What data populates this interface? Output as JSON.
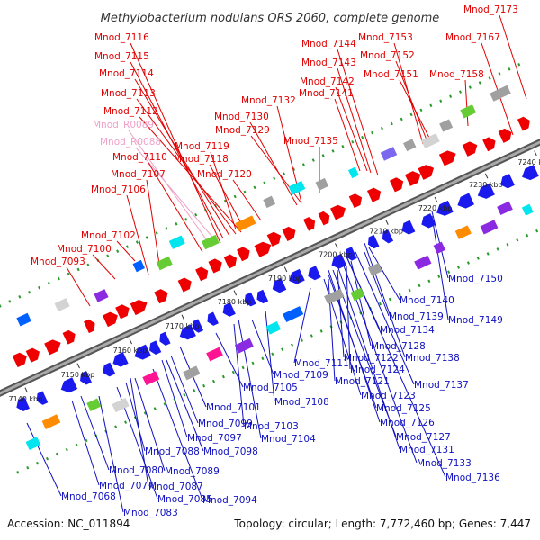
{
  "title": "Methylobacterium nodulans ORS 2060, complete genome",
  "footer": {
    "accession": "Accession: NC_011894",
    "summary": "Topology: circular; Length: 7,772,460 bp; Genes: 7,447"
  },
  "colors": {
    "top_label": "#e00000",
    "rna_label": "#f0a0c8",
    "bottom_label": "#1010c0",
    "backbone": "#777777",
    "forward_feature": "#ee0000",
    "reverse_feature": "#1a1aee",
    "track_dots": "#2a9a2a"
  },
  "ticks": [
    "7140 kbp",
    "7150 kbp",
    "7160 kbp",
    "7170 kbp",
    "7180 kbp",
    "7190 kbp",
    "7200 kbp",
    "7210 kbp",
    "7220 kbp",
    "7230 kbp",
    "7240 kbp"
  ],
  "top_labels": [
    {
      "text": "Mnod_7173",
      "kind": "gene"
    },
    {
      "text": "Mnod_7116",
      "kind": "gene"
    },
    {
      "text": "Mnod_7144",
      "kind": "gene"
    },
    {
      "text": "Mnod_7153",
      "kind": "gene"
    },
    {
      "text": "Mnod_7167",
      "kind": "gene"
    },
    {
      "text": "Mnod_7115",
      "kind": "gene"
    },
    {
      "text": "Mnod_7152",
      "kind": "gene"
    },
    {
      "text": "Mnod_7143",
      "kind": "gene"
    },
    {
      "text": "Mnod_7114",
      "kind": "gene"
    },
    {
      "text": "Mnod_7151",
      "kind": "gene"
    },
    {
      "text": "Mnod_7158",
      "kind": "gene"
    },
    {
      "text": "Mnod_7142",
      "kind": "gene"
    },
    {
      "text": "Mnod_7113",
      "kind": "gene"
    },
    {
      "text": "Mnod_7141",
      "kind": "gene"
    },
    {
      "text": "Mnod_7132",
      "kind": "gene"
    },
    {
      "text": "Mnod_7112",
      "kind": "gene"
    },
    {
      "text": "Mnod_7130",
      "kind": "gene"
    },
    {
      "text": "Mnod_R0089",
      "kind": "rna"
    },
    {
      "text": "Mnod_7129",
      "kind": "gene"
    },
    {
      "text": "Mnod_R0088",
      "kind": "rna"
    },
    {
      "text": "Mnod_7135",
      "kind": "gene"
    },
    {
      "text": "Mnod_7119",
      "kind": "gene"
    },
    {
      "text": "Mnod_7110",
      "kind": "gene"
    },
    {
      "text": "Mnod_7118",
      "kind": "gene"
    },
    {
      "text": "Mnod_7107",
      "kind": "gene"
    },
    {
      "text": "Mnod_7120",
      "kind": "gene"
    },
    {
      "text": "Mnod_7106",
      "kind": "gene"
    },
    {
      "text": "Mnod_7102",
      "kind": "gene"
    },
    {
      "text": "Mnod_7100",
      "kind": "gene"
    },
    {
      "text": "Mnod_7093",
      "kind": "gene"
    }
  ],
  "bottom_labels": [
    "Mnod_7150",
    "Mnod_7140",
    "Mnod_7139",
    "Mnod_7149",
    "Mnod_7134",
    "Mnod_7128",
    "Mnod_7138",
    "Mnod_7111",
    "Mnod_7122",
    "Mnod_7124",
    "Mnod_7109",
    "Mnod_7121",
    "Mnod_7137",
    "Mnod_7105",
    "Mnod_7123",
    "Mnod_7108",
    "Mnod_7125",
    "Mnod_7101",
    "Mnod_7126",
    "Mnod_7099",
    "Mnod_7103",
    "Mnod_7097",
    "Mnod_7127",
    "Mnod_7104",
    "Mnod_7098",
    "Mnod_7131",
    "Mnod_7088",
    "Mnod_7133",
    "Mnod_7080",
    "Mnod_7089",
    "Mnod_7136",
    "Mnod_7077",
    "Mnod_7087",
    "Mnod_7068",
    "Mnod_7085",
    "Mnod_7094",
    "Mnod_7083"
  ]
}
